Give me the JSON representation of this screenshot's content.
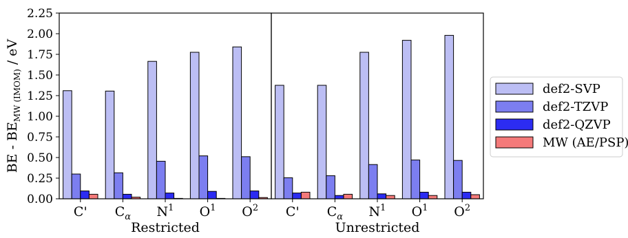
{
  "chart_data": {
    "type": "bar",
    "ylabel": "BE - BE",
    "ylabel_subscript": "MW (IMOM)",
    "ylabel_unit": " / eV",
    "ylim": [
      0,
      2.25
    ],
    "yticks": [
      "0.00",
      "0.25",
      "0.50",
      "0.75",
      "1.00",
      "1.25",
      "1.50",
      "1.75",
      "2.00",
      "2.25"
    ],
    "ytick_values": [
      0,
      0.25,
      0.5,
      0.75,
      1.0,
      1.25,
      1.5,
      1.75,
      2.0,
      2.25
    ],
    "categories": [
      {
        "base": "C'",
        "sub": "",
        "sup": ""
      },
      {
        "base": "C",
        "sub": "α",
        "sup": ""
      },
      {
        "base": "N",
        "sub": "",
        "sup": "1"
      },
      {
        "base": "O",
        "sub": "",
        "sup": "1"
      },
      {
        "base": "O",
        "sub": "",
        "sup": "2"
      }
    ],
    "legend_position": "right",
    "series_styles": [
      {
        "name": "def2-SVP",
        "color": "#bcbef4"
      },
      {
        "name": "def2-TZVP",
        "color": "#7c7ef0"
      },
      {
        "name": "def2-QZVP",
        "color": "#2c2cf2"
      },
      {
        "name": "MW (AE/PSP)",
        "color": "#f47a7a"
      }
    ],
    "panels": [
      {
        "xlabel": "Restricted",
        "series": [
          {
            "name": "def2-SVP",
            "values": [
              1.31,
              1.305,
              1.665,
              1.775,
              1.84
            ]
          },
          {
            "name": "def2-TZVP",
            "values": [
              0.3,
              0.315,
              0.455,
              0.52,
              0.51
            ]
          },
          {
            "name": "def2-QZVP",
            "values": [
              0.095,
              0.055,
              0.07,
              0.09,
              0.095
            ]
          },
          {
            "name": "MW (AE/PSP)",
            "values": [
              0.055,
              0.02,
              0.005,
              0.005,
              0.015
            ]
          }
        ]
      },
      {
        "xlabel": "Unrestricted",
        "series": [
          {
            "name": "def2-SVP",
            "values": [
              1.375,
              1.375,
              1.775,
              1.92,
              1.98
            ]
          },
          {
            "name": "def2-TZVP",
            "values": [
              0.255,
              0.28,
              0.415,
              0.47,
              0.465
            ]
          },
          {
            "name": "def2-QZVP",
            "values": [
              0.07,
              0.04,
              0.06,
              0.08,
              0.08
            ]
          },
          {
            "name": "MW (AE/PSP)",
            "values": [
              0.08,
              0.055,
              0.04,
              0.04,
              0.05
            ]
          }
        ]
      }
    ]
  }
}
